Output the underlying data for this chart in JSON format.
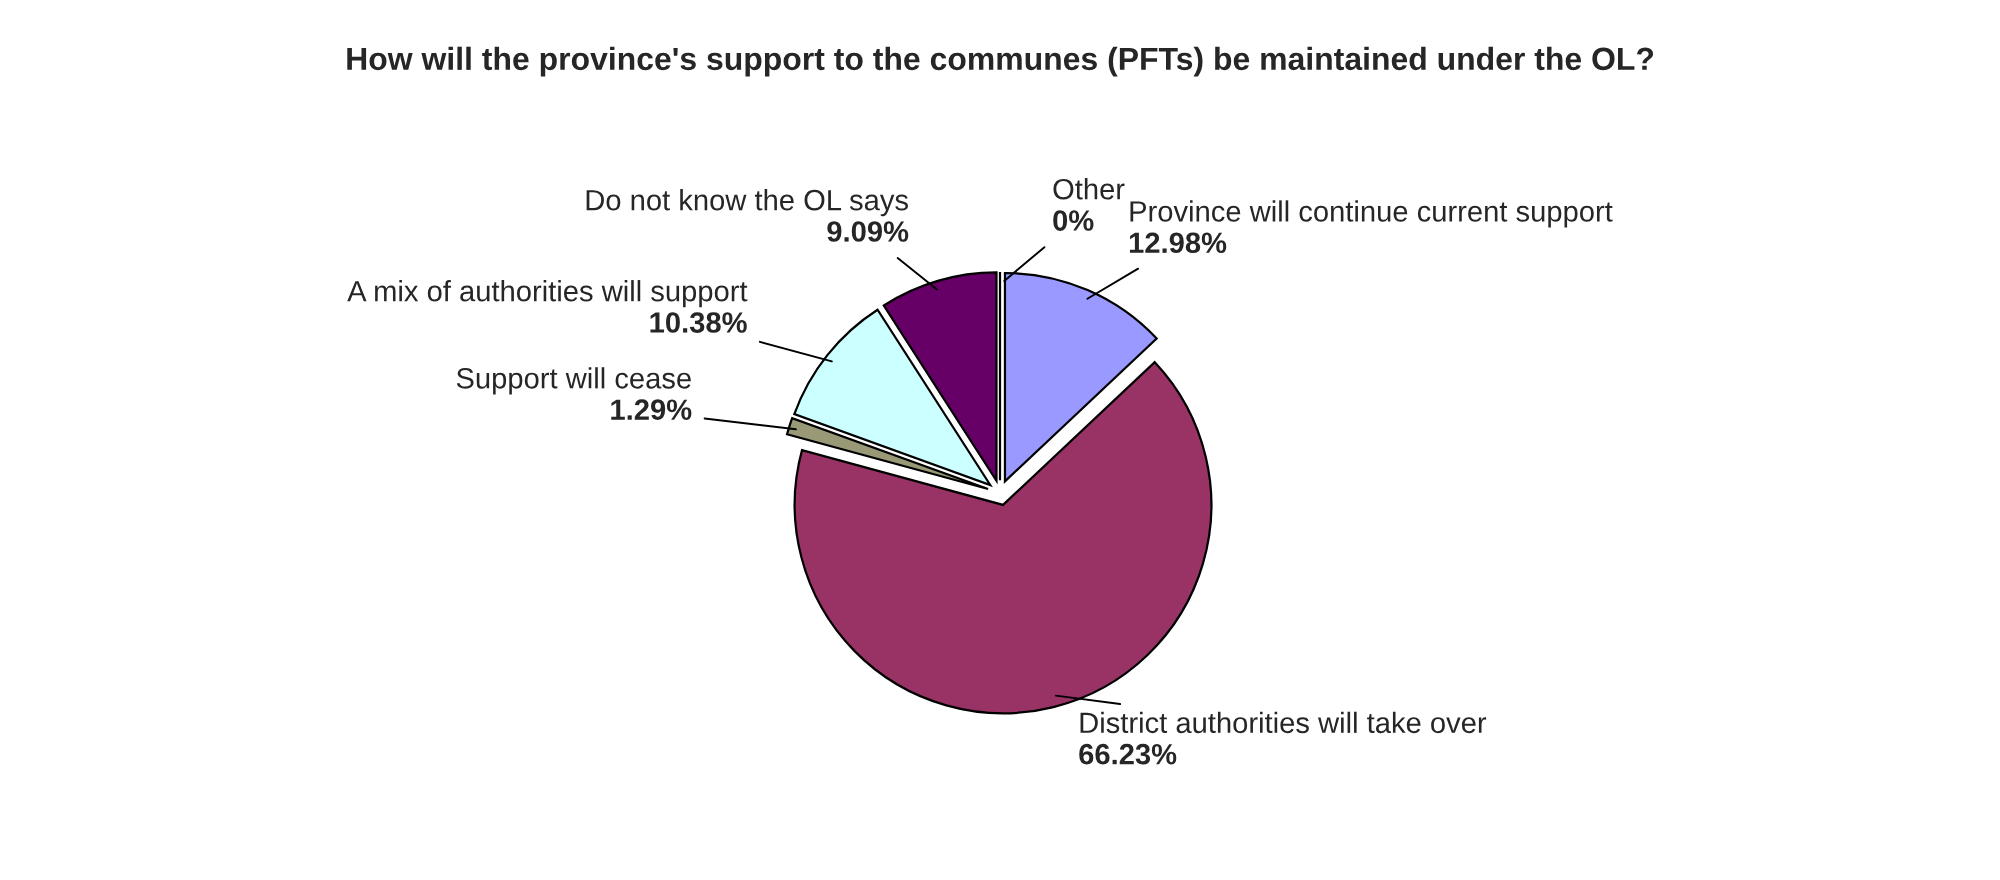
{
  "chart_data": {
    "type": "pie",
    "title": "How will the province's support to the communes (PFTs) be maintained under the OL?",
    "categories": [
      "Province will continue current support",
      "District authorities will take over",
      "Support will cease",
      "A mix of authorities will support",
      "Do not know the OL says",
      "Other"
    ],
    "values": [
      12.98,
      66.23,
      1.29,
      10.38,
      9.09,
      0
    ],
    "value_labels": [
      "12.98%",
      "66.23%",
      "1.29%",
      "10.38%",
      "9.09%",
      "0%"
    ],
    "colors": [
      "#9999ff",
      "#993366",
      "#999977",
      "#ccffff",
      "#660066",
      "#ffffff"
    ],
    "legend": false
  }
}
